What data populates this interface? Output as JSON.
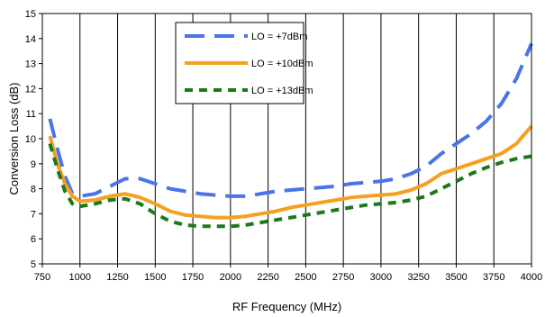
{
  "chart_data": {
    "type": "line",
    "xlabel": "RF Frequency (MHz)",
    "ylabel": "Conversion Loss (dB)",
    "xlim": [
      750,
      4000
    ],
    "ylim": [
      5,
      15
    ],
    "xticks": [
      750,
      1000,
      1250,
      1500,
      1750,
      2000,
      2250,
      2500,
      2750,
      3000,
      3250,
      3500,
      3750,
      4000
    ],
    "yticks": [
      5,
      6,
      7,
      8,
      9,
      10,
      11,
      12,
      13,
      14,
      15
    ],
    "grid": "vertical",
    "legend_position": "top-center",
    "series": [
      {
        "name": "LO = +7dBm",
        "color": "#4a74e8",
        "dash": "long-dash",
        "x": [
          800,
          850,
          900,
          950,
          1000,
          1100,
          1200,
          1300,
          1400,
          1500,
          1600,
          1700,
          1800,
          1900,
          2000,
          2100,
          2200,
          2300,
          2400,
          2500,
          2600,
          2700,
          2800,
          2900,
          3000,
          3100,
          3200,
          3300,
          3400,
          3500,
          3600,
          3700,
          3800,
          3900,
          4000
        ],
        "y": [
          10.8,
          9.6,
          8.5,
          7.8,
          7.7,
          7.8,
          8.1,
          8.4,
          8.4,
          8.2,
          8.0,
          7.9,
          7.8,
          7.75,
          7.7,
          7.7,
          7.8,
          7.9,
          7.95,
          8.0,
          8.05,
          8.1,
          8.2,
          8.25,
          8.3,
          8.4,
          8.6,
          8.9,
          9.4,
          9.8,
          10.2,
          10.7,
          11.4,
          12.4,
          13.8
        ]
      },
      {
        "name": "LO = +10dBm",
        "color": "#f5a020",
        "dash": "solid",
        "x": [
          800,
          850,
          900,
          950,
          1000,
          1100,
          1200,
          1300,
          1400,
          1500,
          1600,
          1700,
          1800,
          1900,
          2000,
          2100,
          2200,
          2300,
          2400,
          2500,
          2600,
          2700,
          2800,
          2900,
          3000,
          3100,
          3200,
          3300,
          3400,
          3500,
          3600,
          3700,
          3800,
          3900,
          4000
        ],
        "y": [
          10.1,
          9.0,
          8.2,
          7.7,
          7.5,
          7.55,
          7.7,
          7.8,
          7.65,
          7.4,
          7.1,
          6.95,
          6.9,
          6.85,
          6.85,
          6.9,
          7.0,
          7.1,
          7.25,
          7.35,
          7.45,
          7.55,
          7.65,
          7.7,
          7.75,
          7.8,
          7.95,
          8.2,
          8.6,
          8.8,
          9.0,
          9.2,
          9.4,
          9.8,
          10.5
        ]
      },
      {
        "name": "LO = +13dBm",
        "color": "#1a7a1a",
        "dash": "short-dash",
        "x": [
          800,
          850,
          900,
          950,
          1000,
          1100,
          1200,
          1300,
          1400,
          1500,
          1600,
          1700,
          1800,
          1900,
          2000,
          2100,
          2200,
          2300,
          2400,
          2500,
          2600,
          2700,
          2800,
          2900,
          3000,
          3100,
          3200,
          3300,
          3400,
          3500,
          3600,
          3700,
          3800,
          3900,
          4000
        ],
        "y": [
          9.8,
          8.8,
          7.9,
          7.4,
          7.3,
          7.4,
          7.55,
          7.6,
          7.4,
          7.0,
          6.7,
          6.55,
          6.5,
          6.5,
          6.5,
          6.55,
          6.65,
          6.75,
          6.85,
          6.95,
          7.05,
          7.15,
          7.25,
          7.35,
          7.4,
          7.45,
          7.55,
          7.7,
          8.0,
          8.3,
          8.6,
          8.85,
          9.05,
          9.2,
          9.3
        ]
      }
    ]
  }
}
